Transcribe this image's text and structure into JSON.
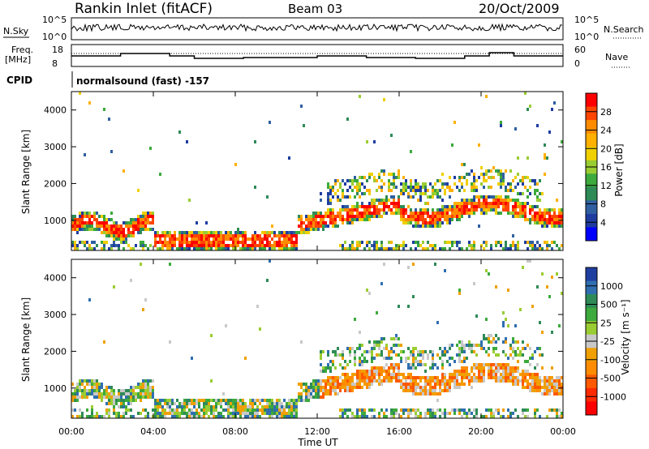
{
  "header": {
    "station": "Rankin Inlet (fitACF)",
    "beam": "Beam 03",
    "date": "20/Oct/2009"
  },
  "status_panels": {
    "nsky_label": "N.Sky",
    "nsky_ticks": [
      "10^5",
      "10^0"
    ],
    "nsearch_label": "N.Search",
    "nsearch_ticks": [
      "10^5",
      "10^0"
    ],
    "freq_label": "Freq.",
    "freq_unit": "[MHz]",
    "freq_ticks": [
      "18",
      "8"
    ],
    "nave_label": "Nave",
    "nave_ticks": [
      "60",
      "0"
    ],
    "cpid_label": "CPID",
    "cpid_text": "normalsound (fast) -157"
  },
  "chart_data": [
    {
      "type": "heatmap",
      "name": "power-panel",
      "ylabel": "Slant Range [km]",
      "ylim": [
        180,
        4500
      ],
      "yticks": [
        1000,
        2000,
        3000,
        4000
      ],
      "xlabel": "",
      "xlim_hours": [
        0,
        24
      ],
      "colorbar": {
        "label": "Power [dB]",
        "ticks": [
          "28",
          "24",
          "20",
          "16",
          "12",
          "8",
          "4"
        ],
        "colors": [
          "#ff0000",
          "#ff4500",
          "#ff8c00",
          "#ffb000",
          "#f0d000",
          "#9acd32",
          "#3caa3c",
          "#2e8b57",
          "#2f5fa0",
          "#1e3ca0",
          "#0000ff"
        ]
      }
    },
    {
      "type": "heatmap",
      "name": "velocity-panel",
      "ylabel": "Slant Range [km]",
      "ylim": [
        180,
        4500
      ],
      "yticks": [
        1000,
        2000,
        3000,
        4000
      ],
      "xlabel": "Time UT",
      "xlim_hours": [
        0,
        24
      ],
      "xticks": [
        "00:00",
        "04:00",
        "08:00",
        "12:00",
        "16:00",
        "20:00",
        "00:00"
      ],
      "colorbar": {
        "label": "Velocity [m s⁻¹]",
        "ticks": [
          "1000",
          "500",
          "25",
          "-25",
          "-100",
          "-500",
          "-1000"
        ],
        "colors": [
          "#1f3fa0",
          "#2f6fb0",
          "#2e8b57",
          "#3caa3c",
          "#9acd32",
          "#c8c8c8",
          "#f0a000",
          "#ff8c00",
          "#ff5a00",
          "#ff2a00",
          "#ff0000"
        ]
      }
    }
  ]
}
